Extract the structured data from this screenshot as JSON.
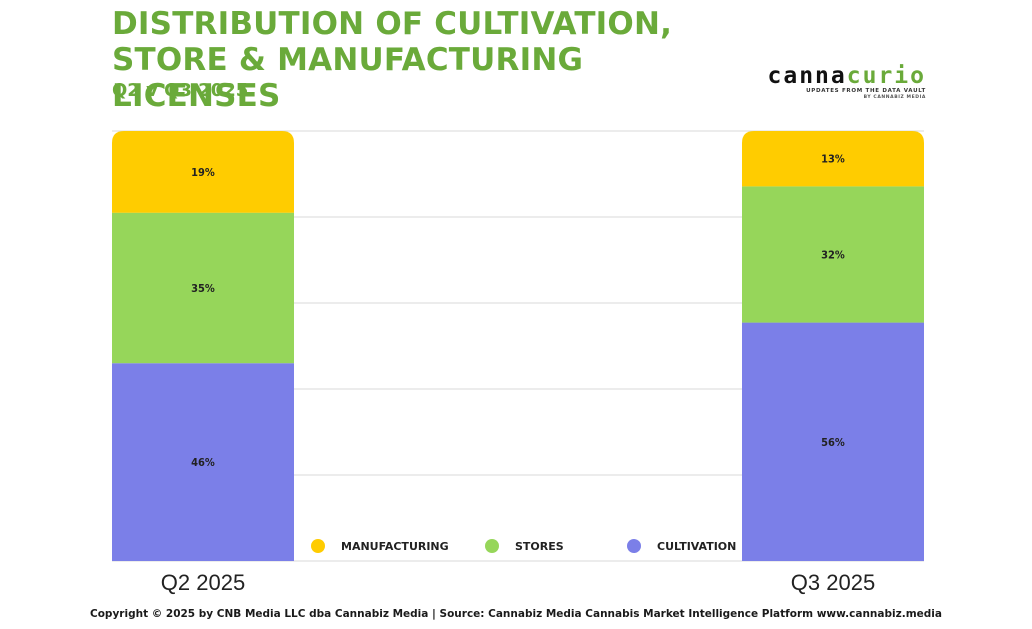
{
  "header": {
    "title": "DISTRIBUTION OF CULTIVATION, STORE & MANUFACTURING LICENSES",
    "subtitle": "Q2 v Q3 2025"
  },
  "logo": {
    "word_part1": "canna",
    "word_part2": "curio",
    "tagline": "UPDATES FROM THE DATA VAULT",
    "byline": "BY CANNABIZ MEDIA"
  },
  "footer": {
    "text": "Copyright © 2025 by CNB Media LLC dba Cannabiz Media | Source: Cannabiz Media Cannabis Market Intelligence Platform www.cannabiz.media"
  },
  "colors": {
    "accent": "#6aaa3a",
    "manufacturing": "#ffcc00",
    "stores": "#96d65a",
    "cultivation": "#7b7fe8"
  },
  "chart_data": {
    "type": "bar",
    "stacked": true,
    "categories": [
      "Q2 2025",
      "Q3 2025"
    ],
    "series": [
      {
        "name": "CULTIVATION",
        "values": [
          46,
          56
        ],
        "labels": [
          "46%",
          "56%"
        ],
        "color": "#7b7fe8"
      },
      {
        "name": "STORES",
        "values": [
          35,
          32
        ],
        "labels": [
          "35%",
          "32%"
        ],
        "color": "#96d65a"
      },
      {
        "name": "MANUFACTURING",
        "values": [
          19,
          13
        ],
        "labels": [
          "19%",
          "13%"
        ],
        "color": "#ffcc00"
      }
    ],
    "legend_order": [
      "MANUFACTURING",
      "STORES",
      "CULTIVATION"
    ],
    "legend_position": "bottom",
    "ylim": [
      0,
      100
    ],
    "grid": true,
    "xlabel": "",
    "ylabel": ""
  }
}
